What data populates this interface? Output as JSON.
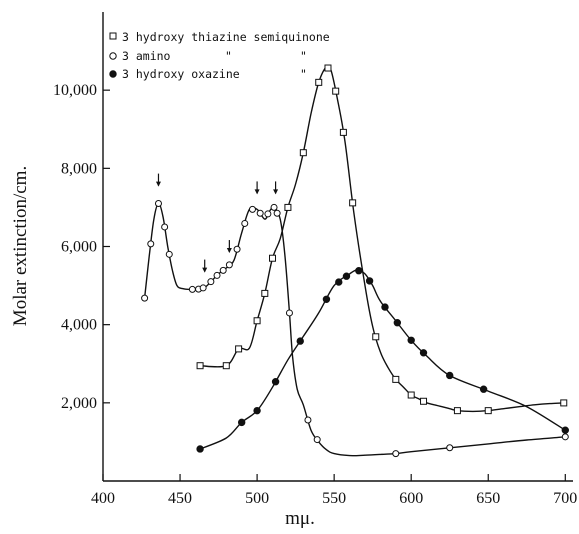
{
  "chart_data": {
    "type": "line",
    "title": "",
    "xlabel": "mμ.",
    "ylabel": "Molar extinction/cm.",
    "xlim": [
      400,
      705
    ],
    "ylim": [
      0,
      12000
    ],
    "x_ticks": [
      400,
      450,
      500,
      550,
      600,
      650,
      700
    ],
    "y_ticks": [
      2000,
      4000,
      6000,
      8000,
      10000
    ],
    "x_tick_labels": [
      "400",
      "450",
      "500",
      "550",
      "600",
      "650",
      "700"
    ],
    "y_tick_labels": [
      "2,000",
      "4,000",
      "6,000",
      "8,000",
      "10,000"
    ],
    "grid": false,
    "legend_position": "top-left",
    "legend_lines": [
      "3 hydroxy thiazine semiquinone",
      "3 amino",
      "3 hydroxy oxazine"
    ],
    "legend_ditto_marks": [
      "\"",
      "\"",
      "\"",
      "\""
    ],
    "series": [
      {
        "name": "3 hydroxy thiazine semiquinone",
        "marker": "square-open",
        "x": [
          463,
          480,
          488,
          495,
          500,
          505,
          510,
          515,
          520,
          525,
          530,
          535,
          540,
          545,
          548,
          552,
          557,
          563,
          570,
          575,
          580,
          585,
          590,
          595,
          600,
          605,
          610,
          615,
          620,
          625,
          630,
          640,
          650,
          660,
          670,
          680,
          690,
          700
        ],
        "y": [
          2950,
          2950,
          3380,
          3400,
          4100,
          4800,
          5700,
          6200,
          7000,
          7600,
          8400,
          9400,
          10200,
          10600,
          10500,
          9800,
          8700,
          6800,
          5000,
          3950,
          3300,
          2900,
          2600,
          2400,
          2200,
          2100,
          2000,
          1950,
          1900,
          1850,
          1800,
          1780,
          1800,
          1850,
          1900,
          1950,
          1980,
          2000
        ],
        "marked_x": [
          463,
          480,
          488,
          500,
          505,
          510,
          520,
          530,
          540,
          546,
          551,
          556,
          562,
          577,
          590,
          600,
          608,
          630,
          650,
          699
        ]
      },
      {
        "name": "3 amino",
        "marker": "circle-open",
        "x": [
          427,
          430,
          433,
          436,
          439,
          442,
          445,
          448,
          452,
          457,
          462,
          466,
          470,
          475,
          480,
          485,
          490,
          495,
          500,
          505,
          508,
          511,
          515,
          518,
          521,
          523,
          526,
          530,
          535,
          540,
          545,
          550,
          560,
          570,
          580,
          590,
          600,
          625,
          650,
          675,
          700
        ],
        "y": [
          4680,
          5750,
          6700,
          7100,
          6750,
          6000,
          5400,
          5000,
          4920,
          4900,
          4910,
          4950,
          5100,
          5300,
          5450,
          5650,
          6350,
          6950,
          6950,
          6700,
          6900,
          7000,
          6700,
          5800,
          4300,
          3200,
          2350,
          1950,
          1300,
          1000,
          800,
          700,
          650,
          660,
          680,
          700,
          750,
          850,
          950,
          1050,
          1130
        ],
        "marked_x": [
          427,
          431,
          436,
          440,
          443,
          458,
          462,
          465,
          470,
          474,
          478,
          482,
          487,
          492,
          497,
          502,
          507,
          511,
          513,
          521,
          533,
          539,
          590,
          625,
          700
        ]
      },
      {
        "name": "3 hydroxy oxazine",
        "marker": "circle-filled",
        "x": [
          463,
          480,
          490,
          500,
          510,
          520,
          530,
          540,
          550,
          560,
          565,
          570,
          575,
          580,
          590,
          600,
          610,
          625,
          650,
          675,
          700
        ],
        "y": [
          820,
          1100,
          1500,
          1800,
          2400,
          3100,
          3700,
          4300,
          5000,
          5300,
          5400,
          5300,
          5000,
          4600,
          4100,
          3600,
          3200,
          2700,
          2300,
          1900,
          1300
        ],
        "marked_x": [
          463,
          490,
          500,
          512,
          528,
          545,
          553,
          558,
          566,
          573,
          583,
          591,
          600,
          608,
          625,
          647,
          700
        ]
      }
    ],
    "annotations": [
      {
        "type": "arrow-down",
        "x": 436,
        "y": 7200
      },
      {
        "type": "arrow-down",
        "x": 466,
        "y": 5000
      },
      {
        "type": "arrow-down",
        "x": 482,
        "y": 5500
      },
      {
        "type": "arrow-down",
        "x": 500,
        "y": 7000
      },
      {
        "type": "arrow-down",
        "x": 512,
        "y": 7000
      }
    ]
  }
}
